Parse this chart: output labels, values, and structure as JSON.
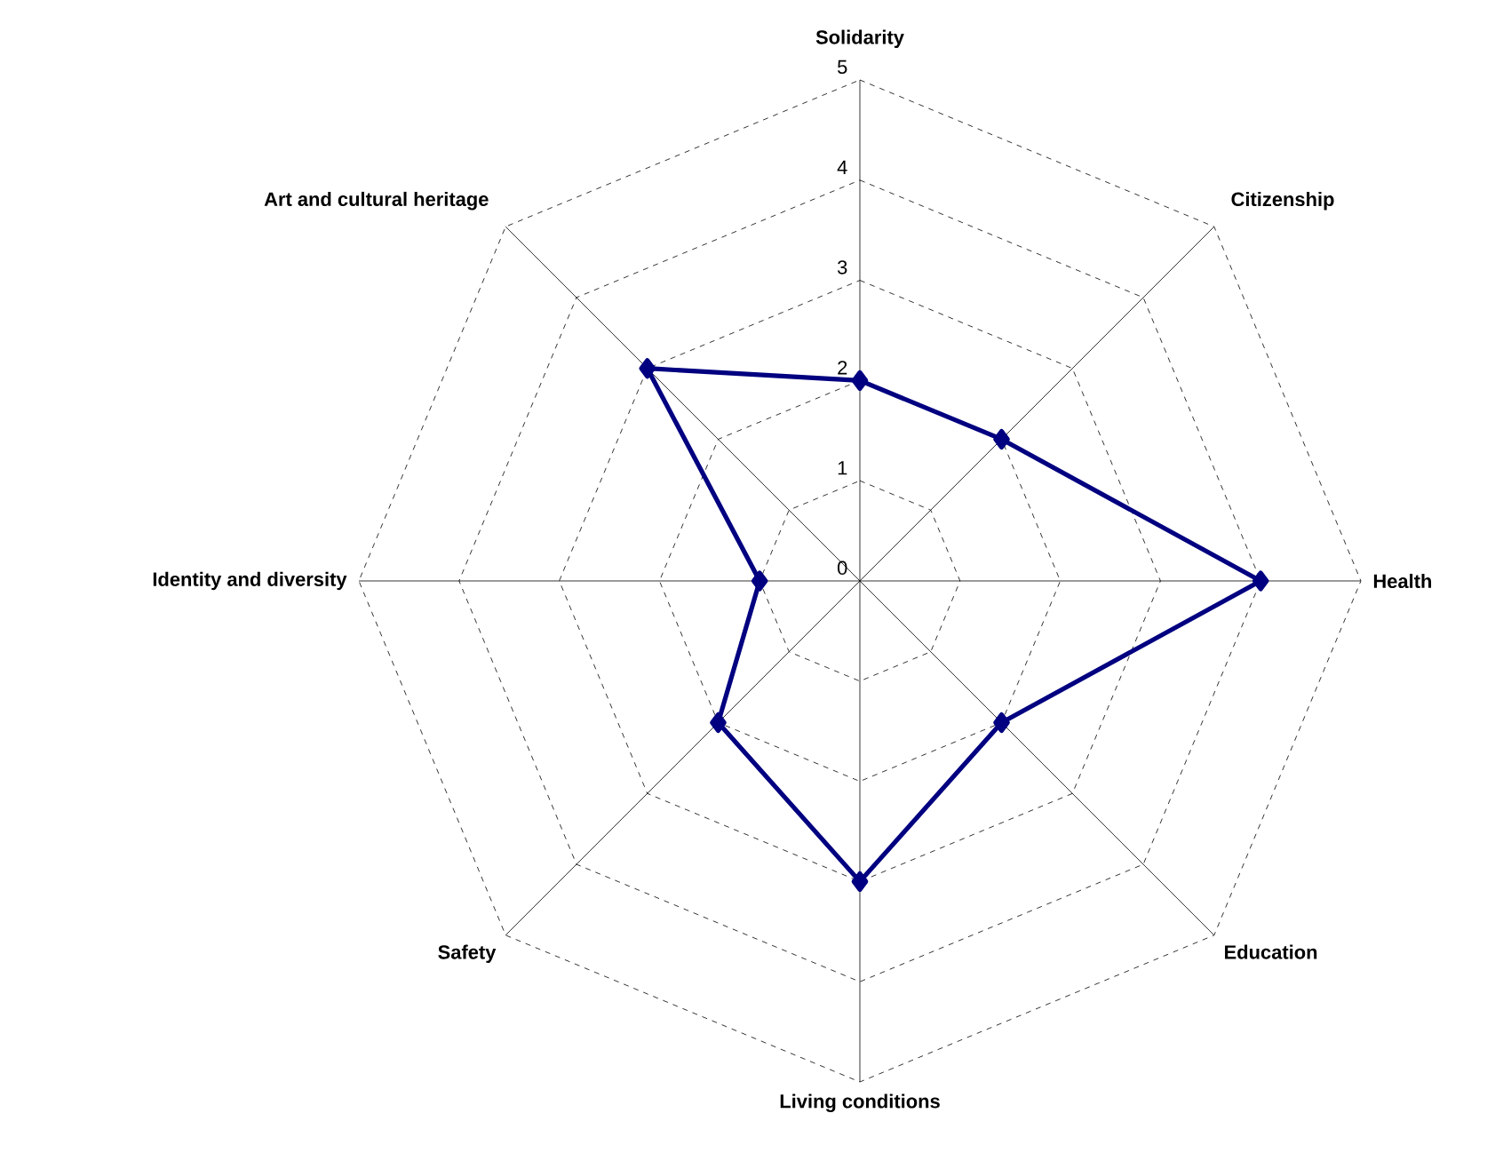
{
  "chart_data": {
    "type": "radar",
    "categories": [
      "Solidarity",
      "Citizenship",
      "Health",
      "Education",
      "Living conditions",
      "Safety",
      "Identity and diversity",
      "Art and cultural heritage"
    ],
    "series": [
      {
        "color": "#000080",
        "values": [
          2,
          2,
          4,
          2,
          3,
          2,
          1,
          3
        ]
      }
    ],
    "ylim": [
      0,
      5
    ],
    "yticks": [
      0,
      1,
      2,
      3,
      4,
      5
    ],
    "grid": true,
    "marker": "diamond",
    "line_style": "solid"
  }
}
